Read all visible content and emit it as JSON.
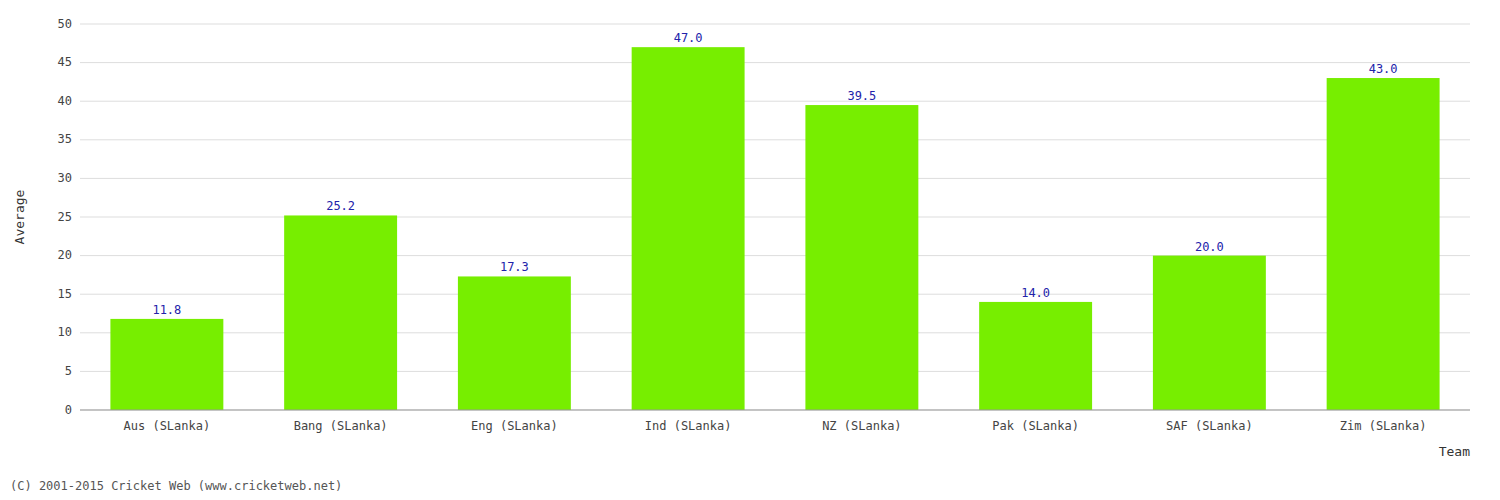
{
  "chart_data": {
    "type": "bar",
    "categories": [
      "Aus (SLanka)",
      "Bang (SLanka)",
      "Eng (SLanka)",
      "Ind (SLanka)",
      "NZ (SLanka)",
      "Pak (SLanka)",
      "SAF (SLanka)",
      "Zim (SLanka)"
    ],
    "values": [
      11.8,
      25.2,
      17.3,
      47.0,
      39.5,
      14.0,
      20.0,
      43.0
    ],
    "value_labels": [
      "11.8",
      "25.2",
      "17.3",
      "47.0",
      "39.5",
      "14.0",
      "20.0",
      "43.0"
    ],
    "color": "#77ee00",
    "x_label": "Team",
    "y_label": "Average",
    "annotations": [
      "(C) 2001-2015 Cricket Web (www.cricketweb.net)"
    ],
    "ylim": [
      0,
      50
    ],
    "yticks": [
      0,
      5,
      10,
      15,
      20,
      25,
      30,
      35,
      40,
      45,
      50
    ],
    "grid": true,
    "data_labels": true
  }
}
